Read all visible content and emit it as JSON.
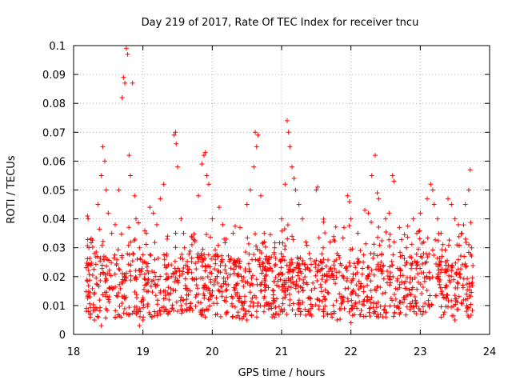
{
  "chart_data": {
    "type": "scatter",
    "title": "Day 219 of 2017, Rate Of TEC Index for receiver tncu",
    "xlabel": "GPS time / hours",
    "ylabel": "ROTI / TECUs",
    "xlim": [
      18,
      24
    ],
    "ylim": [
      0,
      0.1
    ],
    "xticks": [
      "18",
      "19",
      "20",
      "21",
      "22",
      "23",
      "24"
    ],
    "yticks": [
      "0",
      "0.01",
      "0.02",
      "0.03",
      "0.04",
      "0.05",
      "0.06",
      "0.07",
      "0.08",
      "0.09",
      "0.1"
    ],
    "grid": true,
    "marker": "+",
    "color": "#ff0000",
    "series": [
      {
        "name": "ROTI",
        "points": [
          [
            18.2,
            0.041
          ],
          [
            18.21,
            0.04
          ],
          [
            18.22,
            0.03
          ],
          [
            18.25,
            0.033
          ],
          [
            18.3,
            0.028
          ],
          [
            18.35,
            0.045
          ],
          [
            18.4,
            0.055
          ],
          [
            18.42,
            0.065
          ],
          [
            18.45,
            0.06
          ],
          [
            18.47,
            0.05
          ],
          [
            18.5,
            0.042
          ],
          [
            18.55,
            0.035
          ],
          [
            18.6,
            0.038
          ],
          [
            18.65,
            0.05
          ],
          [
            18.7,
            0.082
          ],
          [
            18.72,
            0.089
          ],
          [
            18.74,
            0.087
          ],
          [
            18.76,
            0.099
          ],
          [
            18.78,
            0.097
          ],
          [
            18.8,
            0.062
          ],
          [
            18.85,
            0.087
          ],
          [
            18.82,
            0.055
          ],
          [
            18.88,
            0.048
          ],
          [
            18.9,
            0.04
          ],
          [
            18.95,
            0.03
          ],
          [
            19.0,
            0.025
          ],
          [
            19.05,
            0.035
          ],
          [
            19.1,
            0.044
          ],
          [
            19.15,
            0.042
          ],
          [
            19.2,
            0.038
          ],
          [
            19.25,
            0.047
          ],
          [
            19.3,
            0.052
          ],
          [
            19.35,
            0.033
          ],
          [
            19.45,
            0.069
          ],
          [
            19.47,
            0.07
          ],
          [
            19.48,
            0.066
          ],
          [
            19.5,
            0.058
          ],
          [
            19.55,
            0.04
          ],
          [
            19.6,
            0.03
          ],
          [
            19.7,
            0.034
          ],
          [
            19.8,
            0.048
          ],
          [
            19.85,
            0.059
          ],
          [
            19.88,
            0.062
          ],
          [
            19.9,
            0.063
          ],
          [
            19.92,
            0.055
          ],
          [
            19.95,
            0.052
          ],
          [
            20.0,
            0.04
          ],
          [
            20.1,
            0.044
          ],
          [
            20.15,
            0.038
          ],
          [
            20.2,
            0.033
          ],
          [
            20.3,
            0.035
          ],
          [
            20.4,
            0.037
          ],
          [
            20.5,
            0.045
          ],
          [
            20.55,
            0.05
          ],
          [
            20.6,
            0.058
          ],
          [
            20.62,
            0.07
          ],
          [
            20.64,
            0.065
          ],
          [
            20.66,
            0.069
          ],
          [
            20.7,
            0.048
          ],
          [
            20.75,
            0.035
          ],
          [
            20.8,
            0.025
          ],
          [
            20.9,
            0.03
          ],
          [
            21.0,
            0.04
          ],
          [
            21.05,
            0.052
          ],
          [
            21.08,
            0.074
          ],
          [
            21.1,
            0.07
          ],
          [
            21.12,
            0.065
          ],
          [
            21.15,
            0.058
          ],
          [
            21.18,
            0.054
          ],
          [
            21.2,
            0.05
          ],
          [
            21.25,
            0.045
          ],
          [
            21.3,
            0.04
          ],
          [
            21.35,
            0.032
          ],
          [
            21.4,
            0.028
          ],
          [
            21.5,
            0.05
          ],
          [
            21.52,
            0.051
          ],
          [
            21.6,
            0.03
          ],
          [
            21.7,
            0.032
          ],
          [
            21.8,
            0.028
          ],
          [
            21.9,
            0.037
          ],
          [
            21.95,
            0.048
          ],
          [
            21.98,
            0.046
          ],
          [
            22.0,
            0.04
          ],
          [
            22.1,
            0.035
          ],
          [
            22.2,
            0.043
          ],
          [
            22.25,
            0.042
          ],
          [
            22.3,
            0.055
          ],
          [
            22.35,
            0.062
          ],
          [
            22.38,
            0.049
          ],
          [
            22.4,
            0.047
          ],
          [
            22.5,
            0.04
          ],
          [
            22.55,
            0.042
          ],
          [
            22.6,
            0.055
          ],
          [
            22.62,
            0.053
          ],
          [
            22.7,
            0.037
          ],
          [
            22.8,
            0.03
          ],
          [
            22.9,
            0.04
          ],
          [
            22.95,
            0.035
          ],
          [
            23.0,
            0.042
          ],
          [
            23.05,
            0.032
          ],
          [
            23.1,
            0.047
          ],
          [
            23.15,
            0.052
          ],
          [
            23.18,
            0.05
          ],
          [
            23.2,
            0.045
          ],
          [
            23.25,
            0.04
          ],
          [
            23.3,
            0.035
          ],
          [
            23.4,
            0.047
          ],
          [
            23.45,
            0.045
          ],
          [
            23.5,
            0.04
          ],
          [
            23.55,
            0.038
          ],
          [
            23.6,
            0.035
          ],
          [
            23.65,
            0.045
          ],
          [
            23.7,
            0.05
          ],
          [
            23.72,
            0.057
          ],
          [
            23.74,
            0.03
          ],
          [
            18.3,
            0.005
          ],
          [
            18.4,
            0.003
          ],
          [
            18.6,
            0.006
          ],
          [
            18.95,
            0.003
          ],
          [
            19.0,
            0.005
          ],
          [
            19.5,
            0.008
          ],
          [
            19.9,
            0.006
          ],
          [
            20.2,
            0.007
          ],
          [
            20.5,
            0.005
          ],
          [
            20.9,
            0.006
          ],
          [
            21.4,
            0.007
          ],
          [
            21.8,
            0.005
          ],
          [
            22.0,
            0.004
          ],
          [
            22.4,
            0.006
          ],
          [
            22.7,
            0.007
          ],
          [
            23.0,
            0.008
          ],
          [
            23.3,
            0.006
          ],
          [
            23.5,
            0.005
          ],
          [
            23.7,
            0.006
          ]
        ]
      }
    ],
    "background_density": "dense band of points mostly between 0.005 and 0.035 TECUs across 18.2–23.75 h"
  }
}
